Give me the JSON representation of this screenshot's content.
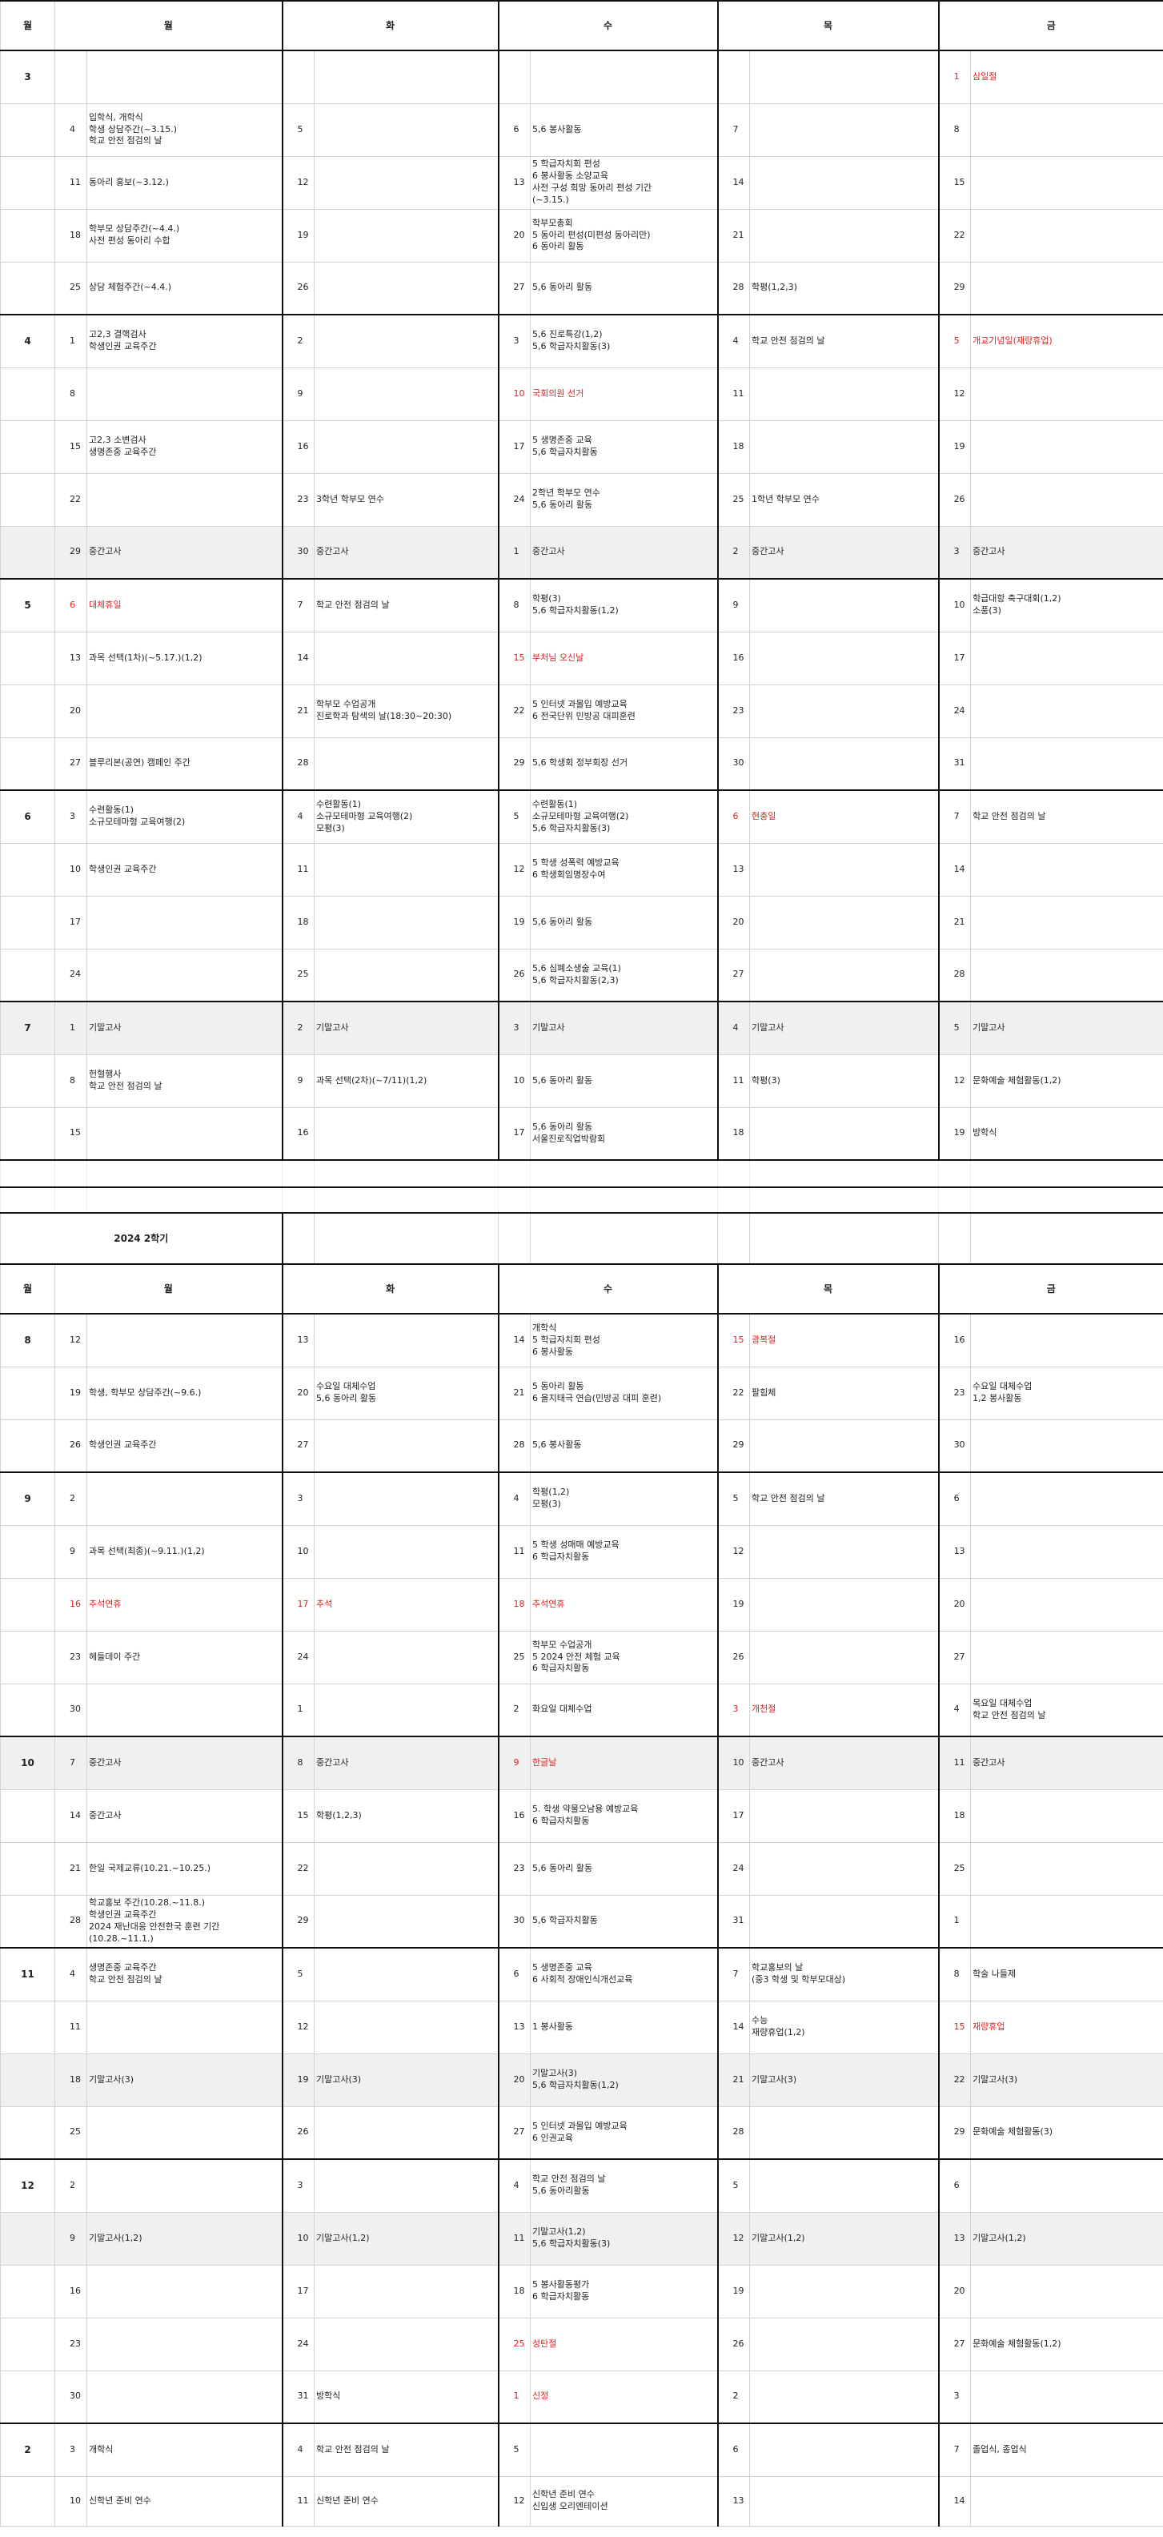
{
  "headers": [
    "월",
    "화",
    "수",
    "목",
    "금"
  ],
  "month_header": "월",
  "semester2_title": "2024 2학기",
  "sem1": [
    {
      "m": "3",
      "h": 66,
      "c": [
        [
          "",
          ""
        ],
        [
          "",
          ""
        ],
        [
          "",
          ""
        ],
        [
          "",
          ""
        ],
        [
          "1",
          "삼일절",
          true
        ]
      ]
    },
    {
      "m": "",
      "h": 66,
      "c": [
        [
          "4",
          "입학식, 개학식\n학생 상담주간(~3.15.)\n학교 안전 점검의 날"
        ],
        [
          "5",
          ""
        ],
        [
          "6",
          "5,6 봉사활동"
        ],
        [
          "7",
          ""
        ],
        [
          "8",
          ""
        ]
      ]
    },
    {
      "m": "",
      "h": 66,
      "c": [
        [
          "11",
          "동아리 홍보(~3.12.)"
        ],
        [
          "12",
          ""
        ],
        [
          "13",
          "5 학급자치회 편성\n6 봉사활동 소양교육\n사전 구성 희망 동아리 편성 기간\n(~3.15.)"
        ],
        [
          "14",
          ""
        ],
        [
          "15",
          ""
        ]
      ]
    },
    {
      "m": "",
      "h": 66,
      "c": [
        [
          "18",
          "학부모 상담주간(~4.4.)\n사전 편성 동아리 수합"
        ],
        [
          "19",
          ""
        ],
        [
          "20",
          "학부모총회\n5 동아리 편성(미편성 동아리만)\n6 동아리 활동"
        ],
        [
          "21",
          ""
        ],
        [
          "22",
          ""
        ]
      ]
    },
    {
      "m": "",
      "h": 66,
      "c": [
        [
          "25",
          "상담 체험주간(~4.4.)"
        ],
        [
          "26",
          ""
        ],
        [
          "27",
          "5,6 동아리 활동"
        ],
        [
          "28",
          "학평(1,2,3)"
        ],
        [
          "29",
          ""
        ]
      ]
    },
    {
      "m": "4",
      "h": 66,
      "c": [
        [
          "1",
          "고2,3 결핵검사\n학생인권 교육주간"
        ],
        [
          "2",
          ""
        ],
        [
          "3",
          "5,6 진로특강(1,2)\n5,6 학급자치활동(3)"
        ],
        [
          "4",
          "학교 안전 점검의 날"
        ],
        [
          "5",
          "개교기념일(재량휴업)",
          true
        ]
      ]
    },
    {
      "m": "",
      "h": 66,
      "c": [
        [
          "8",
          ""
        ],
        [
          "9",
          ""
        ],
        [
          "10",
          "국회의원 선거",
          true
        ],
        [
          "11",
          ""
        ],
        [
          "12",
          ""
        ]
      ]
    },
    {
      "m": "",
      "h": 66,
      "c": [
        [
          "15",
          "고2,3 소변검사\n생명존중 교육주간"
        ],
        [
          "16",
          ""
        ],
        [
          "17",
          "5 생명존중 교육\n5,6 학급자치활동"
        ],
        [
          "18",
          ""
        ],
        [
          "19",
          ""
        ]
      ]
    },
    {
      "m": "",
      "h": 66,
      "c": [
        [
          "22",
          ""
        ],
        [
          "23",
          "3학년 학부모 연수"
        ],
        [
          "24",
          "2학년 학부모 연수\n5,6 동아리 활동"
        ],
        [
          "25",
          "1학년 학부모 연수"
        ],
        [
          "26",
          ""
        ]
      ]
    },
    {
      "m": "",
      "h": 66,
      "gray": true,
      "c": [
        [
          "29",
          "중간고사"
        ],
        [
          "30",
          "중간고사"
        ],
        [
          "1",
          "중간고사"
        ],
        [
          "2",
          "중간고사"
        ],
        [
          "3",
          "중간고사"
        ]
      ]
    },
    {
      "m": "5",
      "h": 66,
      "c": [
        [
          "6",
          "대체휴일",
          true
        ],
        [
          "7",
          "학교 안전 점검의 날"
        ],
        [
          "8",
          "학평(3)\n5,6 학급자치활동(1,2)"
        ],
        [
          "9",
          ""
        ],
        [
          "10",
          "학급대항 축구대회(1,2)\n소풍(3)"
        ]
      ]
    },
    {
      "m": "",
      "h": 66,
      "c": [
        [
          "13",
          "과목 선택(1차)(~5.17.)(1,2)"
        ],
        [
          "14",
          ""
        ],
        [
          "15",
          "부처님 오신날",
          true
        ],
        [
          "16",
          ""
        ],
        [
          "17",
          ""
        ]
      ]
    },
    {
      "m": "",
      "h": 66,
      "c": [
        [
          "20",
          ""
        ],
        [
          "21",
          "학부모 수업공개\n진로학과 탐색의 날(18:30~20:30)"
        ],
        [
          "22",
          "5 인터넷 과몰입 예방교육\n6 전국단위 민방공 대피훈련"
        ],
        [
          "23",
          ""
        ],
        [
          "24",
          ""
        ]
      ]
    },
    {
      "m": "",
      "h": 66,
      "c": [
        [
          "27",
          "블루리본(공연) 캠페인 주간"
        ],
        [
          "28",
          ""
        ],
        [
          "29",
          "5,6 학생회 정부회장 선거"
        ],
        [
          "30",
          ""
        ],
        [
          "31",
          ""
        ]
      ]
    },
    {
      "m": "6",
      "h": 66,
      "c": [
        [
          "3",
          "수련활동(1)\n소규모테마형 교육여행(2)"
        ],
        [
          "4",
          "수련활동(1)\n소규모테마형 교육여행(2)\n모평(3)"
        ],
        [
          "5",
          "수련활동(1)\n소규모테마형 교육여행(2)\n5,6 학급자치활동(3)"
        ],
        [
          "6",
          "현충일",
          true
        ],
        [
          "7",
          "학교 안전 점검의 날"
        ]
      ]
    },
    {
      "m": "",
      "h": 66,
      "c": [
        [
          "10",
          "학생인권 교육주간"
        ],
        [
          "11",
          ""
        ],
        [
          "12",
          "5 학생 성폭력 예방교육\n6 학생회임명장수여"
        ],
        [
          "13",
          ""
        ],
        [
          "14",
          ""
        ]
      ]
    },
    {
      "m": "",
      "h": 66,
      "c": [
        [
          "17",
          ""
        ],
        [
          "18",
          ""
        ],
        [
          "19",
          "5,6 동아리 활동"
        ],
        [
          "20",
          ""
        ],
        [
          "21",
          ""
        ]
      ]
    },
    {
      "m": "",
      "h": 66,
      "c": [
        [
          "24",
          ""
        ],
        [
          "25",
          ""
        ],
        [
          "26",
          "5,6 심폐소생술 교육(1)\n5,6 학급자치활동(2,3)"
        ],
        [
          "27",
          ""
        ],
        [
          "28",
          ""
        ]
      ]
    },
    {
      "m": "7",
      "h": 66,
      "gray": true,
      "c": [
        [
          "1",
          "기말고사"
        ],
        [
          "2",
          "기말고사"
        ],
        [
          "3",
          "기말고사"
        ],
        [
          "4",
          "기말고사"
        ],
        [
          "5",
          "기말고사"
        ]
      ]
    },
    {
      "m": "",
      "h": 66,
      "c": [
        [
          "8",
          "헌혈행사\n학교 안전 점검의 날"
        ],
        [
          "9",
          "과목 선택(2차)(~7/11)(1,2)"
        ],
        [
          "10",
          "5,6 동아리 활동"
        ],
        [
          "11",
          "학평(3)"
        ],
        [
          "12",
          "문화예술 체험활동(1,2)"
        ]
      ]
    },
    {
      "m": "",
      "h": 66,
      "c": [
        [
          "15",
          ""
        ],
        [
          "16",
          ""
        ],
        [
          "17",
          "5,6 동아리 활동\n서울진로직업박람회"
        ],
        [
          "18",
          ""
        ],
        [
          "19",
          "방학식"
        ]
      ]
    }
  ],
  "sem2": [
    {
      "m": "8",
      "h": 66,
      "c": [
        [
          "12",
          ""
        ],
        [
          "13",
          ""
        ],
        [
          "14",
          "개학식\n5 학급자치회 편성\n6 봉사활동"
        ],
        [
          "15",
          "광복절",
          true
        ],
        [
          "16",
          ""
        ]
      ]
    },
    {
      "m": "",
      "h": 66,
      "c": [
        [
          "19",
          "학생, 학부모 상담주간(~9.6.)"
        ],
        [
          "20",
          "수요일 대체수업\n5,6 동아리 활동"
        ],
        [
          "21",
          "5 동아리 활동\n6 을지태극 연습(민방공 대피 훈련)"
        ],
        [
          "22",
          "팔힘체"
        ],
        [
          "23",
          "수요일 대체수업\n1,2 봉사활동"
        ]
      ]
    },
    {
      "m": "",
      "h": 66,
      "c": [
        [
          "26",
          "학생인권 교육주간"
        ],
        [
          "27",
          ""
        ],
        [
          "28",
          "5,6 봉사활동"
        ],
        [
          "29",
          ""
        ],
        [
          "30",
          ""
        ]
      ]
    },
    {
      "m": "9",
      "h": 66,
      "c": [
        [
          "2",
          ""
        ],
        [
          "3",
          ""
        ],
        [
          "4",
          "학평(1,2)\n모평(3)"
        ],
        [
          "5",
          "학교 안전 점검의 날"
        ],
        [
          "6",
          ""
        ]
      ]
    },
    {
      "m": "",
      "h": 66,
      "c": [
        [
          "9",
          "과목 선택(최종)(~9.11.)(1,2)"
        ],
        [
          "10",
          ""
        ],
        [
          "11",
          "5 학생 성매매 예방교육\n6 학급자치활동"
        ],
        [
          "12",
          ""
        ],
        [
          "13",
          ""
        ]
      ]
    },
    {
      "m": "",
      "h": 66,
      "c": [
        [
          "16",
          "추석연휴",
          true
        ],
        [
          "17",
          "추석",
          true
        ],
        [
          "18",
          "추석연휴",
          true
        ],
        [
          "19",
          ""
        ],
        [
          "20",
          ""
        ]
      ]
    },
    {
      "m": "",
      "h": 66,
      "c": [
        [
          "23",
          "헤들데이 주간"
        ],
        [
          "24",
          ""
        ],
        [
          "25",
          "학부모 수업공개\n5 2024 안전 체험 교육\n6 학급자치활동"
        ],
        [
          "26",
          ""
        ],
        [
          "27",
          ""
        ]
      ]
    },
    {
      "m": "",
      "h": 66,
      "c": [
        [
          "30",
          ""
        ],
        [
          "1",
          ""
        ],
        [
          "2",
          "화요일 대체수업"
        ],
        [
          "3",
          "개천절",
          true
        ],
        [
          "4",
          "목요일 대체수업\n학교 안전 점검의 날"
        ]
      ]
    },
    {
      "m": "10",
      "h": 66,
      "gray": true,
      "c": [
        [
          "7",
          "중간고사"
        ],
        [
          "8",
          "중간고사"
        ],
        [
          "9",
          "한글날",
          true
        ],
        [
          "10",
          "중간고사"
        ],
        [
          "11",
          "중간고사"
        ]
      ]
    },
    {
      "m": "",
      "h": 66,
      "c": [
        [
          "14",
          "중간고사"
        ],
        [
          "15",
          "학평(1,2,3)"
        ],
        [
          "16",
          "5. 학생 약물오남용 예방교육\n6 학급자치활동"
        ],
        [
          "17",
          ""
        ],
        [
          "18",
          ""
        ]
      ]
    },
    {
      "m": "",
      "h": 66,
      "c": [
        [
          "21",
          "한일 국제교류(10.21.~10.25.)"
        ],
        [
          "22",
          ""
        ],
        [
          "23",
          "5,6 동아리 활동"
        ],
        [
          "24",
          ""
        ],
        [
          "25",
          ""
        ]
      ]
    },
    {
      "m": "",
      "h": 66,
      "c": [
        [
          "28",
          "학교홍보 주간(10.28.~11.8.)\n학생인권 교육주간\n2024 재난대응 안전한국 훈련 기간\n(10.28.~11.1.)"
        ],
        [
          "29",
          ""
        ],
        [
          "30",
          "5,6 학급자치활동"
        ],
        [
          "31",
          ""
        ],
        [
          "1",
          ""
        ]
      ]
    },
    {
      "m": "11",
      "h": 66,
      "c": [
        [
          "4",
          "생명존중 교육주간\n학교 안전 점검의 날"
        ],
        [
          "5",
          ""
        ],
        [
          "6",
          "5 생명존중 교육\n6 사회적 장애인식개선교육"
        ],
        [
          "7",
          "학교홍보의 날\n(중3 학생 및 학부모대상)"
        ],
        [
          "8",
          "학술 나들제"
        ]
      ]
    },
    {
      "m": "",
      "h": 66,
      "c": [
        [
          "11",
          ""
        ],
        [
          "12",
          ""
        ],
        [
          "13",
          "1 봉사활동"
        ],
        [
          "14",
          "수능\n재량휴업(1,2)"
        ],
        [
          "15",
          "재량휴업",
          true
        ]
      ]
    },
    {
      "m": "",
      "h": 66,
      "gray": true,
      "c": [
        [
          "18",
          "기말고사(3)"
        ],
        [
          "19",
          "기말고사(3)"
        ],
        [
          "20",
          "기말고사(3)\n5,6 학급자치활동(1,2)"
        ],
        [
          "21",
          "기말고사(3)"
        ],
        [
          "22",
          "기말고사(3)"
        ]
      ]
    },
    {
      "m": "",
      "h": 66,
      "c": [
        [
          "25",
          ""
        ],
        [
          "26",
          ""
        ],
        [
          "27",
          "5 인터넷 과몰입 예방교육\n6 인권교육"
        ],
        [
          "28",
          ""
        ],
        [
          "29",
          "문화예술 체험활동(3)"
        ]
      ]
    },
    {
      "m": "12",
      "h": 66,
      "c": [
        [
          "2",
          ""
        ],
        [
          "3",
          ""
        ],
        [
          "4",
          "학교 안전 점검의 날\n5,6 동아리활동"
        ],
        [
          "5",
          ""
        ],
        [
          "6",
          ""
        ]
      ]
    },
    {
      "m": "",
      "h": 66,
      "gray": true,
      "c": [
        [
          "9",
          "기말고사(1,2)"
        ],
        [
          "10",
          "기말고사(1,2)"
        ],
        [
          "11",
          "기말고사(1,2)\n5,6 학급자치활동(3)"
        ],
        [
          "12",
          "기말고사(1,2)"
        ],
        [
          "13",
          "기말고사(1,2)"
        ]
      ]
    },
    {
      "m": "",
      "h": 66,
      "c": [
        [
          "16",
          ""
        ],
        [
          "17",
          ""
        ],
        [
          "18",
          "5 봉사활동평가\n6 학급자치활동"
        ],
        [
          "19",
          ""
        ],
        [
          "20",
          ""
        ]
      ]
    },
    {
      "m": "",
      "h": 66,
      "c": [
        [
          "23",
          ""
        ],
        [
          "24",
          ""
        ],
        [
          "25",
          "성탄절",
          true
        ],
        [
          "26",
          ""
        ],
        [
          "27",
          "문화예술 체험활동(1,2)"
        ]
      ]
    },
    {
      "m": "",
      "h": 66,
      "c": [
        [
          "30",
          ""
        ],
        [
          "31",
          "방학식"
        ],
        [
          "1",
          "신정",
          true
        ],
        [
          "2",
          ""
        ],
        [
          "3",
          ""
        ]
      ]
    },
    {
      "m": "2",
      "h": 66,
      "c": [
        [
          "3",
          "개학식"
        ],
        [
          "4",
          "학교 안전 점검의 날"
        ],
        [
          "5",
          ""
        ],
        [
          "6",
          ""
        ],
        [
          "7",
          "졸업식, 종업식"
        ]
      ]
    },
    {
      "m": "",
      "h": 62,
      "c": [
        [
          "10",
          "신학년 준비 연수"
        ],
        [
          "11",
          "신학년 준비 연수"
        ],
        [
          "12",
          "신학년 준비 연수\n신입생 오리엔테이션"
        ],
        [
          "13",
          ""
        ],
        [
          "14",
          ""
        ]
      ]
    }
  ]
}
